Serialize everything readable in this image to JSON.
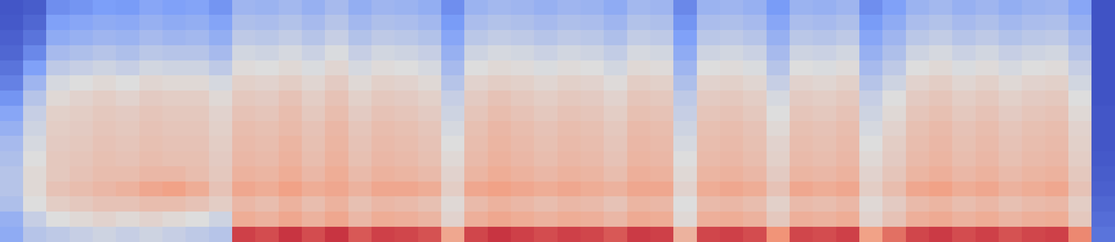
{
  "chart_data": {
    "type": "heatmap",
    "tick_labels": false,
    "zlim": [
      0,
      100
    ],
    "cells": [
      [
        3,
        5,
        20,
        22,
        25,
        24,
        28,
        26,
        27,
        22,
        34,
        33,
        35,
        32,
        36,
        31,
        34,
        33,
        31,
        20,
        33,
        35,
        34,
        32,
        34,
        33,
        30,
        35,
        34,
        18,
        33,
        34,
        32,
        24,
        33,
        32,
        34,
        20,
        26,
        33,
        35,
        32,
        34,
        31,
        33,
        34,
        28,
        2
      ],
      [
        4,
        8,
        26,
        28,
        30,
        29,
        32,
        30,
        31,
        27,
        38,
        37,
        39,
        36,
        40,
        35,
        38,
        37,
        35,
        24,
        37,
        39,
        38,
        36,
        38,
        37,
        34,
        39,
        38,
        22,
        37,
        38,
        36,
        28,
        37,
        36,
        38,
        24,
        30,
        37,
        39,
        36,
        38,
        35,
        37,
        38,
        32,
        2
      ],
      [
        6,
        12,
        30,
        32,
        34,
        33,
        36,
        34,
        35,
        31,
        42,
        41,
        43,
        40,
        44,
        39,
        42,
        41,
        39,
        28,
        41,
        43,
        42,
        40,
        42,
        41,
        38,
        43,
        42,
        26,
        41,
        42,
        40,
        32,
        41,
        40,
        42,
        28,
        34,
        41,
        43,
        40,
        42,
        39,
        41,
        42,
        36,
        2
      ],
      [
        8,
        18,
        36,
        38,
        40,
        38,
        41,
        40,
        40,
        36,
        47,
        46,
        48,
        45,
        49,
        44,
        47,
        46,
        44,
        32,
        46,
        48,
        47,
        45,
        47,
        46,
        43,
        48,
        47,
        30,
        46,
        47,
        45,
        36,
        46,
        45,
        47,
        32,
        38,
        46,
        48,
        45,
        47,
        44,
        46,
        47,
        40,
        2
      ],
      [
        12,
        26,
        42,
        44,
        46,
        44,
        47,
        46,
        46,
        42,
        51,
        50,
        52,
        49,
        53,
        48,
        51,
        50,
        48,
        36,
        50,
        52,
        51,
        49,
        51,
        50,
        47,
        52,
        51,
        34,
        50,
        51,
        49,
        40,
        50,
        49,
        51,
        36,
        42,
        50,
        52,
        49,
        51,
        48,
        50,
        51,
        44,
        2
      ],
      [
        16,
        34,
        48,
        50,
        52,
        50,
        53,
        52,
        52,
        48,
        55,
        54,
        56,
        53,
        57,
        52,
        55,
        54,
        52,
        40,
        54,
        56,
        55,
        53,
        55,
        54,
        51,
        56,
        55,
        38,
        54,
        55,
        53,
        44,
        54,
        53,
        55,
        40,
        46,
        54,
        56,
        53,
        55,
        52,
        54,
        55,
        47,
        2
      ],
      [
        22,
        40,
        52,
        54,
        56,
        54,
        57,
        56,
        56,
        52,
        58,
        57,
        60,
        56,
        60,
        55,
        58,
        57,
        55,
        44,
        57,
        60,
        58,
        56,
        58,
        57,
        54,
        59,
        58,
        42,
        57,
        58,
        56,
        48,
        57,
        56,
        58,
        44,
        50,
        57,
        59,
        56,
        58,
        55,
        57,
        58,
        50,
        2
      ],
      [
        28,
        44,
        55,
        56,
        58,
        57,
        59,
        58,
        58,
        54,
        60,
        59,
        62,
        58,
        62,
        57,
        60,
        59,
        57,
        46,
        59,
        62,
        60,
        58,
        60,
        59,
        56,
        61,
        60,
        44,
        59,
        60,
        58,
        50,
        59,
        58,
        60,
        46,
        52,
        59,
        61,
        58,
        60,
        57,
        59,
        60,
        52,
        3
      ],
      [
        32,
        46,
        56,
        57,
        59,
        58,
        60,
        59,
        59,
        55,
        62,
        61,
        63,
        60,
        64,
        59,
        62,
        61,
        59,
        48,
        61,
        64,
        62,
        60,
        62,
        61,
        58,
        63,
        62,
        46,
        61,
        62,
        60,
        52,
        61,
        60,
        62,
        48,
        54,
        61,
        63,
        60,
        62,
        59,
        61,
        62,
        54,
        3
      ],
      [
        36,
        48,
        57,
        58,
        60,
        59,
        61,
        60,
        60,
        56,
        63,
        62,
        65,
        61,
        65,
        60,
        63,
        62,
        60,
        50,
        62,
        65,
        63,
        61,
        63,
        62,
        59,
        64,
        63,
        48,
        62,
        63,
        61,
        54,
        62,
        61,
        63,
        50,
        56,
        62,
        64,
        61,
        63,
        60,
        62,
        63,
        55,
        3
      ],
      [
        38,
        50,
        58,
        59,
        61,
        60,
        62,
        61,
        61,
        57,
        64,
        63,
        66,
        62,
        66,
        61,
        64,
        63,
        61,
        52,
        63,
        66,
        64,
        62,
        64,
        63,
        60,
        65,
        64,
        50,
        63,
        64,
        62,
        55,
        63,
        62,
        64,
        52,
        57,
        63,
        65,
        62,
        64,
        61,
        63,
        64,
        56,
        4
      ],
      [
        40,
        52,
        58,
        60,
        62,
        62,
        64,
        64,
        62,
        58,
        66,
        65,
        68,
        64,
        68,
        63,
        66,
        65,
        63,
        54,
        65,
        68,
        66,
        64,
        66,
        65,
        62,
        67,
        66,
        52,
        65,
        66,
        64,
        57,
        65,
        64,
        66,
        54,
        59,
        65,
        67,
        64,
        66,
        63,
        65,
        66,
        58,
        5
      ],
      [
        40,
        52,
        60,
        62,
        64,
        66,
        70,
        72,
        68,
        60,
        70,
        68,
        72,
        68,
        70,
        66,
        70,
        70,
        68,
        56,
        70,
        72,
        70,
        68,
        70,
        68,
        66,
        70,
        70,
        54,
        68,
        70,
        68,
        60,
        70,
        68,
        70,
        56,
        62,
        70,
        72,
        68,
        70,
        66,
        68,
        70,
        60,
        6
      ],
      [
        38,
        50,
        56,
        58,
        60,
        60,
        62,
        62,
        60,
        56,
        64,
        62,
        66,
        62,
        66,
        61,
        64,
        63,
        61,
        52,
        63,
        66,
        64,
        62,
        64,
        63,
        60,
        65,
        64,
        50,
        63,
        64,
        62,
        55,
        63,
        62,
        64,
        52,
        57,
        63,
        65,
        62,
        64,
        61,
        63,
        64,
        56,
        8
      ],
      [
        32,
        44,
        50,
        52,
        54,
        52,
        54,
        52,
        50,
        46,
        68,
        66,
        70,
        66,
        70,
        64,
        68,
        67,
        65,
        54,
        67,
        70,
        68,
        66,
        68,
        67,
        64,
        69,
        68,
        52,
        67,
        68,
        66,
        58,
        67,
        66,
        68,
        54,
        60,
        67,
        69,
        66,
        68,
        65,
        67,
        68,
        58,
        10
      ],
      [
        30,
        40,
        42,
        44,
        46,
        44,
        46,
        44,
        42,
        40,
        90,
        88,
        92,
        88,
        92,
        86,
        90,
        89,
        87,
        70,
        89,
        92,
        90,
        88,
        90,
        89,
        86,
        91,
        90,
        66,
        89,
        90,
        88,
        76,
        89,
        88,
        90,
        72,
        82,
        89,
        91,
        88,
        90,
        87,
        89,
        90,
        78,
        12
      ]
    ]
  }
}
